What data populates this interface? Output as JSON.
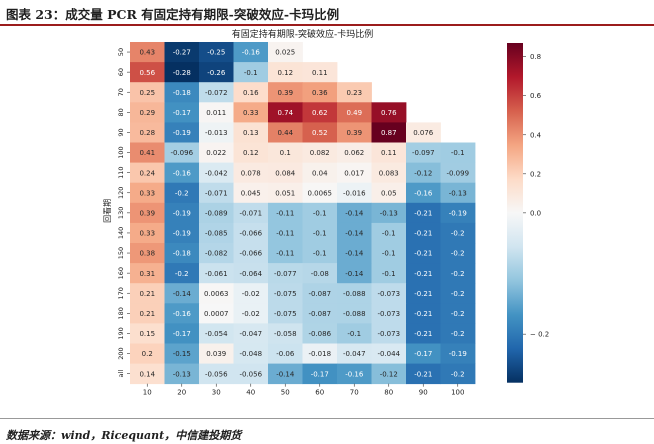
{
  "header": {
    "figure_title": "图表 23：成交量 PCR 有固定持有期限-突破效应-卡玛比例"
  },
  "footer": {
    "source": "数据来源：wind，Ricequant，中信建投期货"
  },
  "colors": {
    "negative": "#053061",
    "zero": "#f7f7f7",
    "positive": "#67001f",
    "title_rule": "#9b1c1c"
  },
  "chart_data": {
    "type": "heatmap",
    "title": "有固定持有期限-突破效应-卡玛比例",
    "xlabel": "",
    "ylabel": "回看期",
    "x_categories": [
      "10",
      "20",
      "30",
      "40",
      "50",
      "60",
      "70",
      "80",
      "90",
      "100"
    ],
    "y_categories": [
      "50",
      "60",
      "70",
      "80",
      "90",
      "100",
      "110",
      "120",
      "130",
      "140",
      "150",
      "160",
      "170",
      "180",
      "190",
      "200",
      "all"
    ],
    "values": [
      [
        0.43,
        -0.27,
        -0.25,
        -0.16,
        0.025,
        null,
        null,
        null,
        null,
        null
      ],
      [
        0.56,
        -0.28,
        -0.26,
        -0.1,
        0.12,
        0.11,
        null,
        null,
        null,
        null
      ],
      [
        0.25,
        -0.18,
        -0.072,
        0.16,
        0.39,
        0.36,
        0.23,
        null,
        null,
        null
      ],
      [
        0.29,
        -0.17,
        0.011,
        0.33,
        0.74,
        0.62,
        0.49,
        0.76,
        null,
        null
      ],
      [
        0.28,
        -0.19,
        -0.013,
        0.13,
        0.44,
        0.52,
        0.39,
        0.87,
        0.076,
        null
      ],
      [
        0.41,
        -0.096,
        0.022,
        0.12,
        0.1,
        0.082,
        0.062,
        0.11,
        -0.097,
        -0.1
      ],
      [
        0.24,
        -0.16,
        -0.042,
        0.078,
        0.084,
        0.04,
        0.017,
        0.083,
        -0.12,
        -0.099
      ],
      [
        0.33,
        -0.2,
        -0.071,
        0.045,
        0.051,
        0.0065,
        -0.016,
        0.05,
        -0.16,
        -0.13
      ],
      [
        0.39,
        -0.19,
        -0.089,
        -0.071,
        -0.11,
        -0.1,
        -0.14,
        -0.13,
        -0.21,
        -0.19
      ],
      [
        0.33,
        -0.19,
        -0.085,
        -0.066,
        -0.11,
        -0.1,
        -0.14,
        -0.1,
        -0.21,
        -0.2
      ],
      [
        0.38,
        -0.18,
        -0.082,
        -0.066,
        -0.11,
        -0.1,
        -0.14,
        -0.1,
        -0.21,
        -0.2
      ],
      [
        0.31,
        -0.2,
        -0.061,
        -0.064,
        -0.077,
        -0.08,
        -0.14,
        -0.1,
        -0.21,
        -0.2
      ],
      [
        0.21,
        -0.14,
        0.0063,
        -0.02,
        -0.075,
        -0.087,
        -0.088,
        -0.073,
        -0.21,
        -0.2
      ],
      [
        0.21,
        -0.16,
        0.0007,
        -0.02,
        -0.075,
        -0.087,
        -0.088,
        -0.073,
        -0.21,
        -0.2
      ],
      [
        0.15,
        -0.17,
        -0.054,
        -0.047,
        -0.058,
        -0.086,
        -0.1,
        -0.073,
        -0.21,
        -0.2
      ],
      [
        0.2,
        -0.15,
        0.039,
        -0.048,
        -0.06,
        -0.018,
        -0.047,
        -0.044,
        -0.17,
        -0.19
      ],
      [
        0.14,
        -0.13,
        -0.056,
        -0.056,
        -0.14,
        -0.17,
        -0.16,
        -0.12,
        -0.21,
        -0.2
      ]
    ],
    "labels": [
      [
        "0.43",
        "-0.27",
        "-0.25",
        "-0.16",
        "0.025",
        "",
        "",
        "",
        "",
        ""
      ],
      [
        "0.56",
        "-0.28",
        "-0.26",
        "-0.1",
        "0.12",
        "0.11",
        "",
        "",
        "",
        ""
      ],
      [
        "0.25",
        "-0.18",
        "-0.072",
        "0.16",
        "0.39",
        "0.36",
        "0.23",
        "",
        "",
        ""
      ],
      [
        "0.29",
        "-0.17",
        "0.011",
        "0.33",
        "0.74",
        "0.62",
        "0.49",
        "0.76",
        "",
        ""
      ],
      [
        "0.28",
        "-0.19",
        "-0.013",
        "0.13",
        "0.44",
        "0.52",
        "0.39",
        "0.87",
        "0.076",
        ""
      ],
      [
        "0.41",
        "-0.096",
        "0.022",
        "0.12",
        "0.1",
        "0.082",
        "0.062",
        "0.11",
        "-0.097",
        "-0.1"
      ],
      [
        "0.24",
        "-0.16",
        "-0.042",
        "0.078",
        "0.084",
        "0.04",
        "0.017",
        "0.083",
        "-0.12",
        "-0.099"
      ],
      [
        "0.33",
        "-0.2",
        "-0.071",
        "0.045",
        "0.051",
        "0.0065",
        "-0.016",
        "0.05",
        "-0.16",
        "-0.13"
      ],
      [
        "0.39",
        "-0.19",
        "-0.089",
        "-0.071",
        "-0.11",
        "-0.1",
        "-0.14",
        "-0.13",
        "-0.21",
        "-0.19"
      ],
      [
        "0.33",
        "-0.19",
        "-0.085",
        "-0.066",
        "-0.11",
        "-0.1",
        "-0.14",
        "-0.1",
        "-0.21",
        "-0.2"
      ],
      [
        "0.38",
        "-0.18",
        "-0.082",
        "-0.066",
        "-0.11",
        "-0.1",
        "-0.14",
        "-0.1",
        "-0.21",
        "-0.2"
      ],
      [
        "0.31",
        "-0.2",
        "-0.061",
        "-0.064",
        "-0.077",
        "-0.08",
        "-0.14",
        "-0.1",
        "-0.21",
        "-0.2"
      ],
      [
        "0.21",
        "-0.14",
        "0.0063",
        "-0.02",
        "-0.075",
        "-0.087",
        "-0.088",
        "-0.073",
        "-0.21",
        "-0.2"
      ],
      [
        "0.21",
        "-0.16",
        "0.0007",
        "-0.02",
        "-0.075",
        "-0.087",
        "-0.088",
        "-0.073",
        "-0.21",
        "-0.2"
      ],
      [
        "0.15",
        "-0.17",
        "-0.054",
        "-0.047",
        "-0.058",
        "-0.086",
        "-0.1",
        "-0.073",
        "-0.21",
        "-0.2"
      ],
      [
        "0.2",
        "-0.15",
        "0.039",
        "-0.048",
        "-0.06",
        "-0.018",
        "-0.047",
        "-0.044",
        "-0.17",
        "-0.19"
      ],
      [
        "0.14",
        "-0.13",
        "-0.056",
        "-0.056",
        "-0.14",
        "-0.17",
        "-0.16",
        "-0.12",
        "-0.21",
        "-0.2"
      ]
    ],
    "colorbar": {
      "vmin": -0.28,
      "vmax": 0.87,
      "ticks": [
        -0.2,
        0.0,
        0.2,
        0.4,
        0.6,
        0.8
      ],
      "tick_labels": [
        "− 0.2",
        "0.0",
        "0.2",
        "0.4",
        "0.6",
        "0.8"
      ]
    },
    "colormap": "RdBu_r",
    "grid": false,
    "legend": "colorbar-right"
  }
}
